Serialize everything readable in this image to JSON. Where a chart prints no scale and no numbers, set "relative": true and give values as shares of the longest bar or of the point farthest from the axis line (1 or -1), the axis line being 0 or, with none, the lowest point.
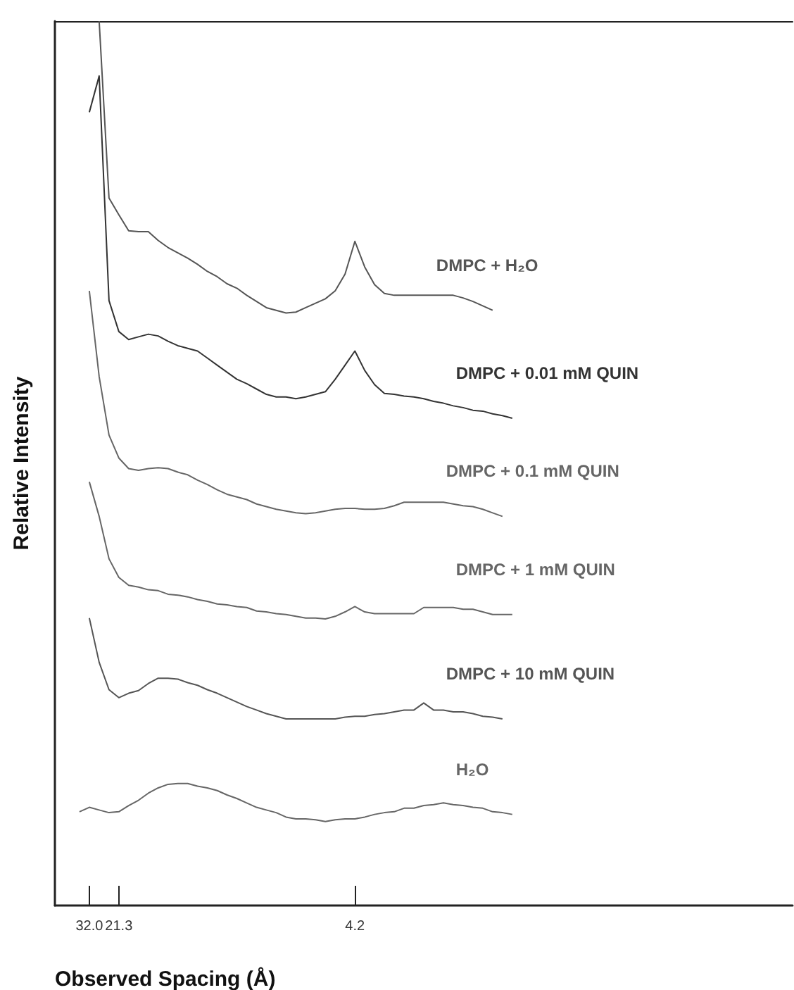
{
  "chart_data": {
    "type": "line",
    "xlabel": "Observed Spacing (Å)",
    "ylabel": "Relative Intensity",
    "relative": true,
    "tick_labels": "x",
    "categories": [
      null,
      null,
      null,
      "32.0",
      null,
      null,
      "21.3",
      null,
      null,
      null,
      null,
      null,
      null,
      null,
      null,
      null,
      null,
      null,
      null,
      null,
      null,
      null,
      null,
      null,
      null,
      null,
      null,
      null,
      null,
      null,
      "4.2",
      null,
      null,
      null,
      null,
      null,
      null,
      null,
      null,
      null,
      null,
      null,
      null,
      null,
      null,
      null,
      null,
      null,
      null,
      null,
      null,
      null,
      null,
      null,
      null,
      null,
      null,
      null,
      null,
      null,
      null,
      null,
      null,
      null,
      null,
      null,
      null,
      null,
      null,
      null,
      null,
      null,
      null,
      null,
      null
    ],
    "series": [
      {
        "name": "DMPC + H₂O",
        "color": "#555555",
        "values": [
          null,
          null,
          null,
          null,
          1.0,
          0.8,
          0.781,
          0.763,
          0.762,
          0.762,
          0.752,
          0.744,
          0.738,
          0.732,
          0.725,
          0.717,
          0.711,
          0.703,
          0.698,
          0.69,
          0.683,
          0.676,
          0.673,
          0.67,
          0.671,
          0.676,
          0.681,
          0.686,
          0.695,
          0.714,
          0.751,
          0.722,
          0.702,
          0.692,
          0.69,
          0.69,
          0.69,
          0.69,
          0.69,
          0.69,
          0.69,
          0.687,
          0.683,
          0.678,
          0.673,
          null,
          null,
          null,
          null,
          null,
          null,
          null,
          null,
          null,
          null,
          null,
          null,
          null,
          null,
          null,
          null,
          null,
          null,
          null,
          null,
          null,
          null,
          null,
          null,
          null,
          null,
          null,
          null,
          null,
          null
        ]
      },
      {
        "name": "DMPC + 0.01 mM QUIN",
        "color": "#333333",
        "values": [
          null,
          null,
          null,
          0.897,
          0.938,
          0.684,
          0.649,
          0.64,
          0.643,
          0.646,
          0.644,
          0.638,
          0.633,
          0.63,
          0.627,
          0.619,
          0.611,
          0.603,
          0.595,
          0.59,
          0.584,
          0.578,
          0.575,
          0.575,
          0.573,
          0.575,
          0.578,
          0.581,
          0.595,
          0.611,
          0.627,
          0.605,
          0.589,
          0.579,
          0.578,
          0.576,
          0.575,
          0.573,
          0.57,
          0.568,
          0.565,
          0.563,
          0.56,
          0.559,
          0.556,
          0.554,
          0.551,
          null,
          null,
          null,
          null,
          null,
          null,
          null,
          null,
          null,
          null,
          null,
          null,
          null,
          null,
          null,
          null,
          null,
          null,
          null,
          null,
          null,
          null,
          null,
          null,
          null,
          null,
          null,
          null
        ]
      },
      {
        "name": "DMPC + 0.1 mM QUIN",
        "color": "#666666",
        "values": [
          null,
          null,
          null,
          0.695,
          0.598,
          0.532,
          0.506,
          0.494,
          0.492,
          0.494,
          0.495,
          0.494,
          0.49,
          0.487,
          0.481,
          0.476,
          0.47,
          0.465,
          0.462,
          0.459,
          0.454,
          0.451,
          0.448,
          0.446,
          0.444,
          0.443,
          0.444,
          0.446,
          0.448,
          0.449,
          0.449,
          0.448,
          0.448,
          0.449,
          0.452,
          0.456,
          0.456,
          0.456,
          0.456,
          0.456,
          0.454,
          0.452,
          0.451,
          0.448,
          0.444,
          0.44,
          null,
          null,
          null,
          null,
          null,
          null,
          null,
          null,
          null,
          null,
          null,
          null,
          null,
          null,
          null,
          null,
          null,
          null,
          null,
          null,
          null,
          null,
          null,
          null,
          null,
          null,
          null,
          null,
          null
        ]
      },
      {
        "name": "DMPC + 1 mM QUIN",
        "color": "#666666",
        "values": [
          null,
          null,
          null,
          0.479,
          0.44,
          0.392,
          0.371,
          0.362,
          0.36,
          0.357,
          0.356,
          0.352,
          0.351,
          0.349,
          0.346,
          0.344,
          0.341,
          0.34,
          0.338,
          0.337,
          0.333,
          0.332,
          0.33,
          0.329,
          0.327,
          0.325,
          0.325,
          0.324,
          0.327,
          0.332,
          0.338,
          0.332,
          0.33,
          0.33,
          0.33,
          0.33,
          0.33,
          0.337,
          0.337,
          0.337,
          0.337,
          0.335,
          0.335,
          0.332,
          0.329,
          0.329,
          0.329,
          null,
          null,
          null,
          null,
          null,
          null,
          null,
          null,
          null,
          null,
          null,
          null,
          null,
          null,
          null,
          null,
          null,
          null,
          null,
          null,
          null,
          null,
          null,
          null,
          null,
          null,
          null,
          null
        ]
      },
      {
        "name": "DMPC + 10 mM QUIN",
        "color": "#555555",
        "values": [
          null,
          null,
          null,
          0.325,
          0.275,
          0.244,
          0.235,
          0.24,
          0.243,
          0.251,
          0.257,
          0.257,
          0.256,
          0.252,
          0.249,
          0.244,
          0.24,
          0.235,
          0.23,
          0.225,
          0.221,
          0.217,
          0.214,
          0.211,
          0.211,
          0.211,
          0.211,
          0.211,
          0.211,
          0.213,
          0.214,
          0.214,
          0.216,
          0.217,
          0.219,
          0.221,
          0.221,
          0.229,
          0.221,
          0.221,
          0.219,
          0.219,
          0.217,
          0.214,
          0.213,
          0.211,
          null,
          null,
          null,
          null,
          null,
          null,
          null,
          null,
          null,
          null,
          null,
          null,
          null,
          null,
          null,
          null,
          null,
          null,
          null,
          null,
          null,
          null,
          null,
          null,
          null,
          null,
          null,
          null,
          null
        ]
      },
      {
        "name": "H₂O",
        "color": "#666666",
        "values": [
          null,
          null,
          0.106,
          0.111,
          0.108,
          0.105,
          0.106,
          0.113,
          0.119,
          0.127,
          0.133,
          0.137,
          0.138,
          0.138,
          0.135,
          0.133,
          0.13,
          0.125,
          0.121,
          0.116,
          0.111,
          0.108,
          0.105,
          0.1,
          0.098,
          0.098,
          0.097,
          0.095,
          0.097,
          0.098,
          0.098,
          0.1,
          0.103,
          0.105,
          0.106,
          0.11,
          0.11,
          0.113,
          0.114,
          0.116,
          0.114,
          0.113,
          0.111,
          0.11,
          0.106,
          0.105,
          0.103,
          null,
          null,
          null,
          null,
          null,
          null,
          null,
          null,
          null,
          null,
          null,
          null,
          null,
          null,
          null,
          null,
          null,
          null,
          null,
          null,
          null,
          null,
          null,
          null,
          null,
          null,
          null,
          null
        ]
      }
    ]
  }
}
